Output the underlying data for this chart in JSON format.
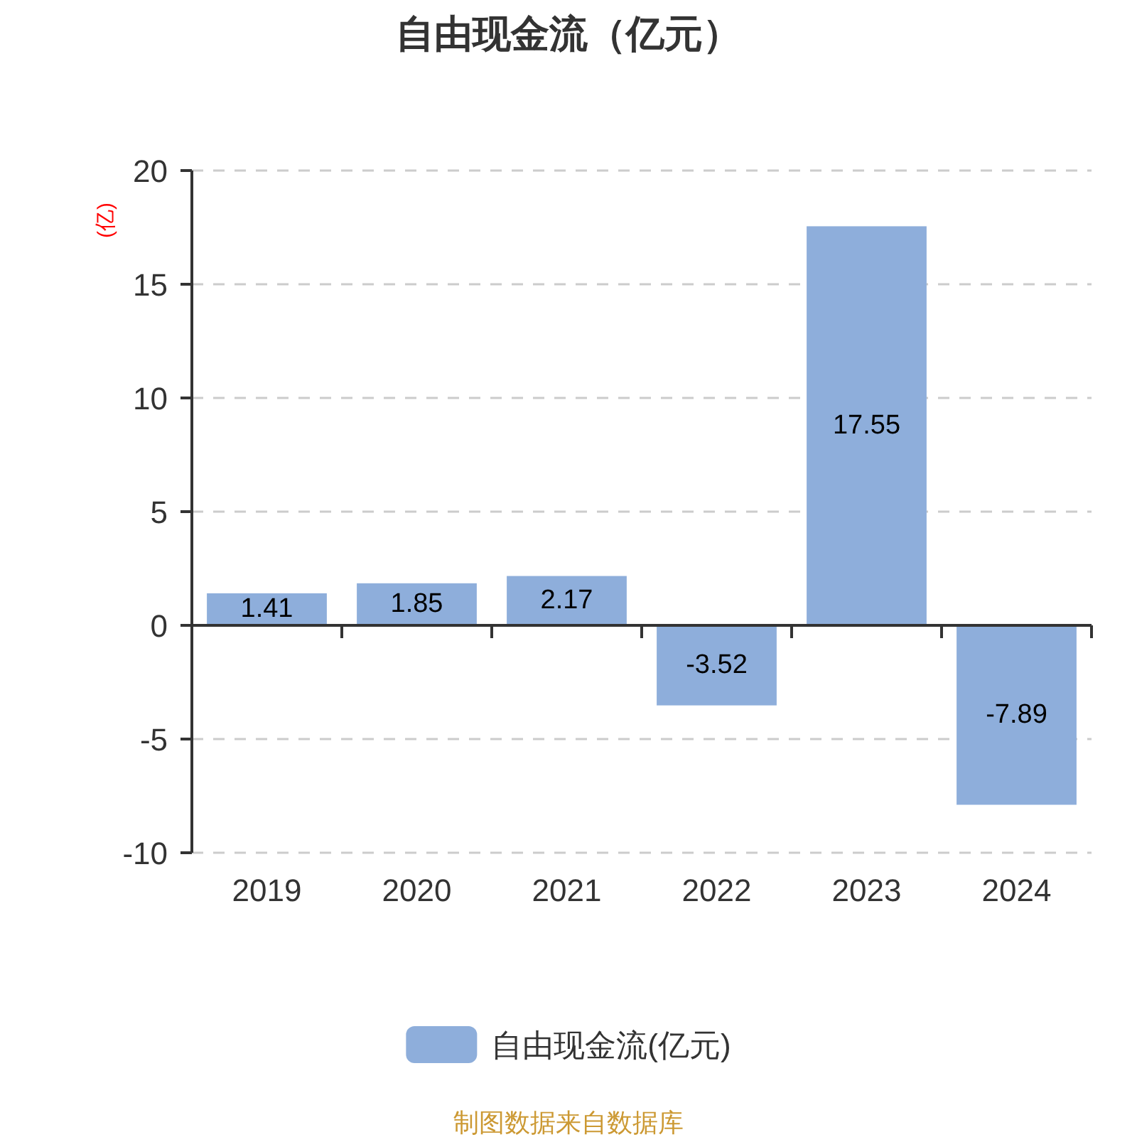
{
  "chart_data": {
    "type": "bar",
    "title": "自由现金流（亿元）",
    "ylabel": "(亿)",
    "categories": [
      "2019",
      "2020",
      "2021",
      "2022",
      "2023",
      "2024"
    ],
    "series": [
      {
        "name": "自由现金流(亿元)",
        "color": "#8eaedb",
        "values": [
          1.41,
          1.85,
          2.17,
          -3.52,
          17.55,
          -7.89
        ]
      }
    ],
    "ylim": [
      -10,
      20
    ],
    "yticks": [
      -10,
      -5,
      0,
      5,
      10,
      15,
      20
    ],
    "grid": "y",
    "legend": "bottom",
    "data_labels": true,
    "annotations": [
      "制图数据来自数据库"
    ]
  }
}
